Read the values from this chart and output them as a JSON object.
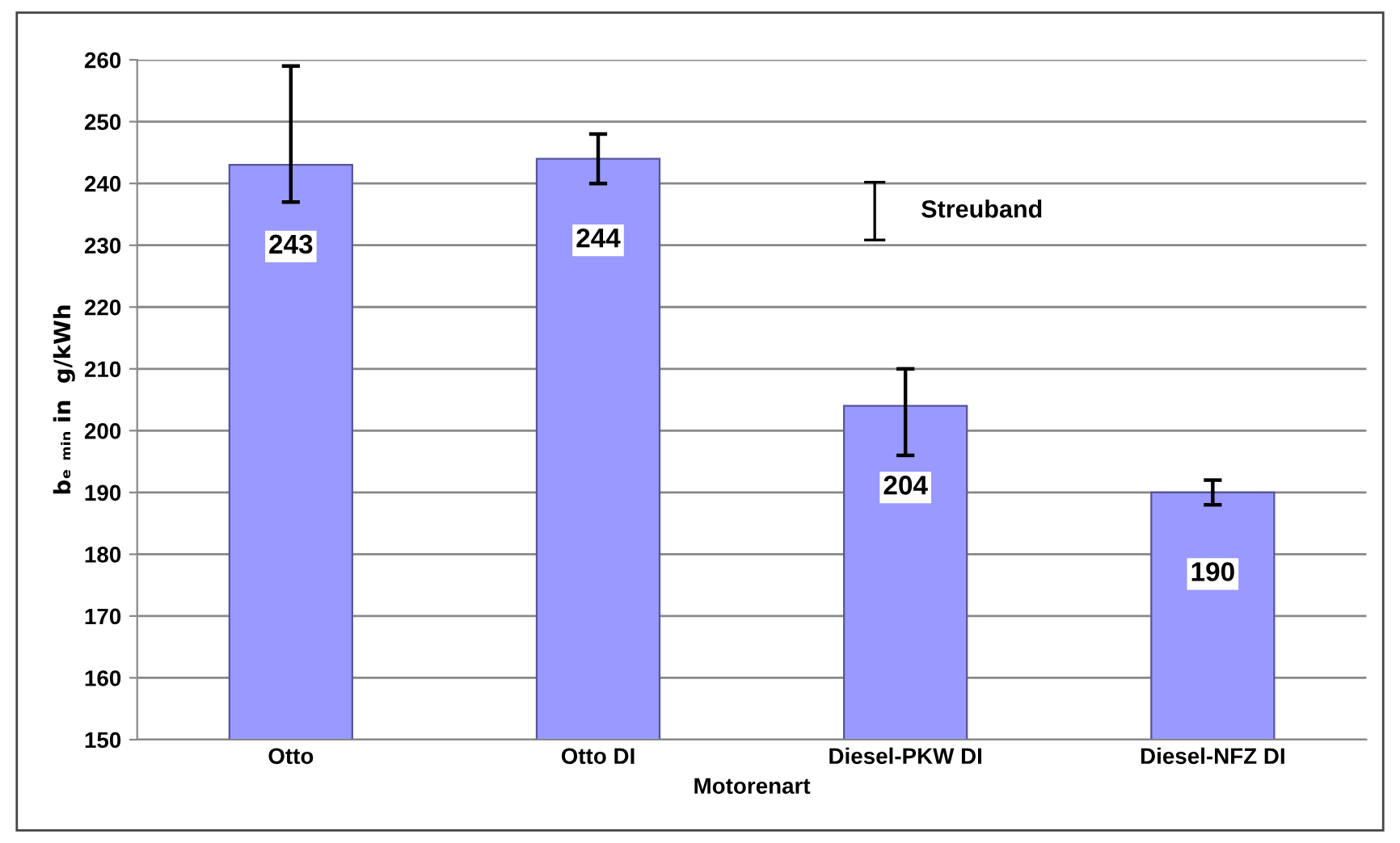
{
  "chart_data": {
    "type": "bar",
    "categories": [
      "Otto",
      "Otto DI",
      "Diesel-PKW DI",
      "Diesel-NFZ DI"
    ],
    "values": [
      243,
      244,
      204,
      190
    ],
    "errors": [
      [
        237,
        259
      ],
      [
        240,
        248
      ],
      [
        196,
        210
      ],
      [
        188,
        192
      ]
    ],
    "color": "#9999ff",
    "data_labels": true,
    "xlabel": "Motorenart",
    "ylabel": "bₑ ₘᵢₙ in  g/kWh",
    "ylim": [
      150,
      260
    ],
    "yticks": [
      150,
      160,
      170,
      180,
      190,
      200,
      210,
      220,
      230,
      240,
      250,
      260
    ],
    "grid": "y",
    "annotations": [
      "Streuband"
    ]
  }
}
